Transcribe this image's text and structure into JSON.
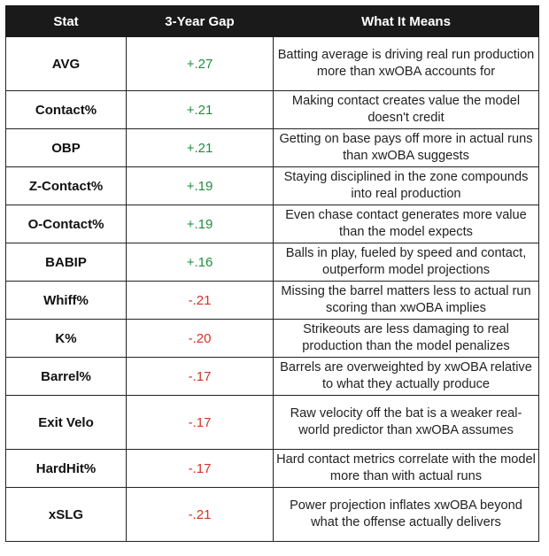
{
  "table": {
    "headers": {
      "stat": "Stat",
      "gap": "3-Year Gap",
      "meaning": "What It Means"
    },
    "colors": {
      "header_bg": "#1a1a1a",
      "positive": "#1e8e3e",
      "negative": "#d93025"
    },
    "rows": [
      {
        "stat": "AVG",
        "gap": "+.27",
        "meaning": "Batting average is driving real run production more than xwOBA accounts for"
      },
      {
        "stat": "Contact%",
        "gap": "+.21",
        "meaning": "Making contact creates value the model doesn't credit"
      },
      {
        "stat": "OBP",
        "gap": "+.21",
        "meaning": "Getting on base pays off more in actual runs than xwOBA suggests"
      },
      {
        "stat": "Z-Contact%",
        "gap": "+.19",
        "meaning": "Staying disciplined in the zone compounds into real production"
      },
      {
        "stat": "O-Contact%",
        "gap": "+.19",
        "meaning": "Even chase contact generates more value than the model expects"
      },
      {
        "stat": "BABIP",
        "gap": "+.16",
        "meaning": "Balls in play, fueled by speed and contact, outperform model projections"
      },
      {
        "stat": "Whiff%",
        "gap": "-.21",
        "meaning": "Missing the barrel matters less to actual run scoring than xwOBA implies"
      },
      {
        "stat": "K%",
        "gap": "-.20",
        "meaning": "Strikeouts are less damaging to real production than the model penalizes"
      },
      {
        "stat": "Barrel%",
        "gap": "-.17",
        "meaning": "Barrels are overweighted by xwOBA relative to what they actually produce"
      },
      {
        "stat": "Exit Velo",
        "gap": "-.17",
        "meaning": "Raw velocity off the bat is a weaker real-world predictor than xwOBA assumes"
      },
      {
        "stat": "HardHit%",
        "gap": "-.17",
        "meaning": "Hard contact metrics correlate with the model more than with actual runs"
      },
      {
        "stat": "xSLG",
        "gap": "-.21",
        "meaning": "Power projection inflates xwOBA beyond what the offense actually delivers"
      }
    ]
  }
}
